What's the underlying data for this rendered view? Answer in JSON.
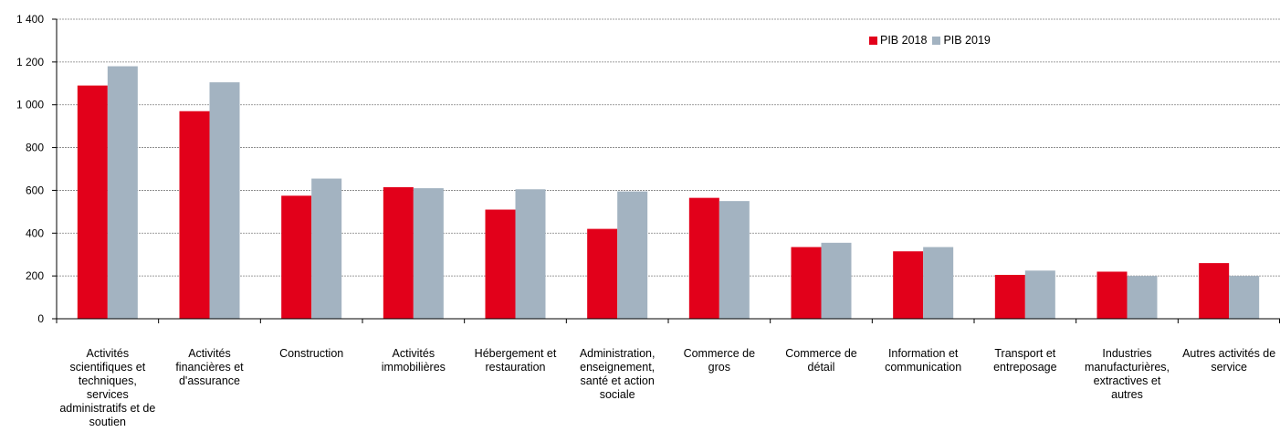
{
  "chart_data": {
    "type": "bar",
    "categories": [
      "Activités scientifiques et techniques, services administratifs et de soutien",
      "Activités financières et d'assurance",
      "Construction",
      "Activités immobilières",
      "Hébergement et restauration",
      "Administration, enseignement, santé et action sociale",
      "Commerce de gros",
      "Commerce de détail",
      "Information et communication",
      "Transport et entreposage",
      "Industries manufacturières, extractives et autres",
      "Autres activités de service"
    ],
    "series": [
      {
        "name": "PIB 2018",
        "color": "#e2001a",
        "values": [
          1090,
          970,
          575,
          615,
          510,
          420,
          565,
          335,
          315,
          205,
          220,
          260
        ]
      },
      {
        "name": "PIB 2019",
        "color": "#a3b3c1",
        "values": [
          1180,
          1105,
          655,
          610,
          605,
          595,
          550,
          355,
          335,
          225,
          200,
          200
        ]
      }
    ],
    "ylim": [
      0,
      1400
    ],
    "yticks": [
      "0",
      "200",
      "400",
      "600",
      "800",
      "1 000",
      "1 200",
      "1 400"
    ],
    "grid": true,
    "legend_position": "top-right",
    "title": "",
    "xlabel": "",
    "ylabel": ""
  }
}
